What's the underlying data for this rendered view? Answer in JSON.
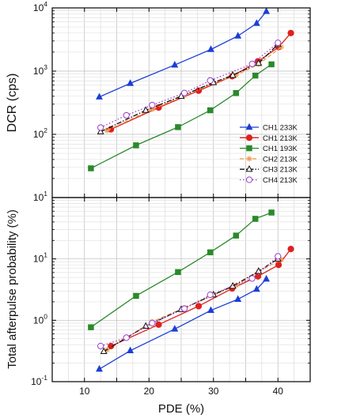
{
  "chart_data": [
    {
      "type": "line",
      "ylabel": "DCR (cps)",
      "yscale": "log",
      "ylim": [
        10,
        10000
      ],
      "xlim": [
        5,
        45
      ],
      "y_tick_labels": [
        {
          "value": 10,
          "base": "10",
          "exp": "1"
        },
        {
          "value": 100,
          "base": "10",
          "exp": "2"
        },
        {
          "value": 1000,
          "base": "10",
          "exp": "3"
        },
        {
          "value": 10000,
          "base": "10",
          "exp": "4"
        }
      ],
      "grid": true,
      "legend_position": "lower-right",
      "series": [
        {
          "name": "CH1 233K",
          "color": "#1a3fd6",
          "marker": "triangle-filled",
          "line": "solid",
          "points": [
            [
              12.3,
              390
            ],
            [
              17.1,
              640
            ],
            [
              24.0,
              1250
            ],
            [
              29.6,
              2200
            ],
            [
              33.8,
              3600
            ],
            [
              36.7,
              5700
            ],
            [
              38.2,
              8800
            ]
          ]
        },
        {
          "name": "CH1 213K",
          "color": "#e02020",
          "marker": "circle-filled",
          "line": "solid",
          "points": [
            [
              14.1,
              120
            ],
            [
              21.5,
              265
            ],
            [
              27.7,
              490
            ],
            [
              32.9,
              830
            ],
            [
              36.9,
              1430
            ],
            [
              40.1,
              2400
            ],
            [
              42.0,
              4000
            ]
          ]
        },
        {
          "name": "CH1 193K",
          "color": "#2a8a2a",
          "marker": "square-filled",
          "line": "solid",
          "points": [
            [
              11.0,
              29
            ],
            [
              18.0,
              67
            ],
            [
              24.5,
              130
            ],
            [
              29.5,
              240
            ],
            [
              33.5,
              450
            ],
            [
              36.5,
              850
            ],
            [
              39.0,
              1280
            ]
          ]
        },
        {
          "name": "CH2 213K",
          "color": "#f0a050",
          "marker": "star",
          "line": "dashed",
          "points": [
            [
              13.5,
              115
            ],
            [
              20.5,
              250
            ],
            [
              25.5,
              410
            ],
            [
              30.0,
              650
            ],
            [
              33.5,
              860
            ],
            [
              37.0,
              1280
            ],
            [
              40.5,
              2400
            ]
          ]
        },
        {
          "name": "CH3 213K",
          "color": "#111111",
          "marker": "triangle-open",
          "line": "dashdot",
          "points": [
            [
              12.5,
              110
            ],
            [
              19.5,
              240
            ],
            [
              25.0,
              400
            ],
            [
              30.0,
              660
            ],
            [
              33.0,
              860
            ],
            [
              37.0,
              1330
            ],
            [
              40.0,
              2650
            ]
          ]
        },
        {
          "name": "CH4 213K",
          "color": "#9a3fcf",
          "marker": "circle-open",
          "line": "dotted",
          "points": [
            [
              12.5,
              128
            ],
            [
              16.5,
              200
            ],
            [
              20.5,
              290
            ],
            [
              25.5,
              450
            ],
            [
              29.5,
              710
            ],
            [
              36.0,
              1300
            ],
            [
              40.0,
              2800
            ]
          ]
        }
      ]
    },
    {
      "type": "line",
      "xlabel": "PDE (%)",
      "ylabel": "Total afterpulse probability (%)",
      "yscale": "log",
      "ylim": [
        0.1,
        100
      ],
      "xlim": [
        5,
        45
      ],
      "x_tick_labels": [
        {
          "value": 10,
          "text": "10"
        },
        {
          "value": 20,
          "text": "20"
        },
        {
          "value": 30,
          "text": "30"
        },
        {
          "value": 40,
          "text": "40"
        }
      ],
      "y_tick_labels": [
        {
          "value": 0.1,
          "base": "10",
          "exp": "-1"
        },
        {
          "value": 1,
          "base": "10",
          "exp": "0"
        },
        {
          "value": 10,
          "base": "10",
          "exp": "1"
        }
      ],
      "grid": true,
      "series": [
        {
          "name": "CH1 233K",
          "color": "#1a3fd6",
          "marker": "triangle-filled",
          "line": "solid",
          "points": [
            [
              12.3,
              0.16
            ],
            [
              17.1,
              0.32
            ],
            [
              24.0,
              0.72
            ],
            [
              29.6,
              1.45
            ],
            [
              33.8,
              2.2
            ],
            [
              36.7,
              3.2
            ],
            [
              38.2,
              4.7
            ]
          ]
        },
        {
          "name": "CH1 213K",
          "color": "#e02020",
          "marker": "circle-filled",
          "line": "solid",
          "points": [
            [
              14.1,
              0.38
            ],
            [
              21.5,
              0.85
            ],
            [
              27.7,
              1.7
            ],
            [
              32.9,
              3.3
            ],
            [
              36.9,
              5.2
            ],
            [
              40.1,
              8.0
            ],
            [
              42.0,
              14.5
            ]
          ]
        },
        {
          "name": "CH1 193K",
          "color": "#2a8a2a",
          "marker": "square-filled",
          "line": "solid",
          "points": [
            [
              11.0,
              0.77
            ],
            [
              18.0,
              2.5
            ],
            [
              24.5,
              6.1
            ],
            [
              29.5,
              12.8
            ],
            [
              33.5,
              24.0
            ],
            [
              36.5,
              45.0
            ],
            [
              39.0,
              57.0
            ]
          ]
        },
        {
          "name": "CH2 213K",
          "color": "#f0a050",
          "marker": "star",
          "line": "dashed",
          "points": [
            [
              13.5,
              0.33
            ],
            [
              20.5,
              0.95
            ],
            [
              25.5,
              1.6
            ],
            [
              30.0,
              2.6
            ],
            [
              33.5,
              3.7
            ],
            [
              37.0,
              6.2
            ],
            [
              40.5,
              9.8
            ]
          ]
        },
        {
          "name": "CH3 213K",
          "color": "#111111",
          "marker": "triangle-open",
          "line": "dashdot",
          "points": [
            [
              13.0,
              0.31
            ],
            [
              19.5,
              0.8
            ],
            [
              25.0,
              1.5
            ],
            [
              30.0,
              2.6
            ],
            [
              33.0,
              3.6
            ],
            [
              37.0,
              6.3
            ],
            [
              40.0,
              10.0
            ]
          ]
        },
        {
          "name": "CH4 213K",
          "color": "#9a3fcf",
          "marker": "circle-open",
          "line": "dotted",
          "points": [
            [
              12.5,
              0.38
            ],
            [
              16.5,
              0.52
            ],
            [
              20.5,
              0.9
            ],
            [
              25.5,
              1.55
            ],
            [
              29.5,
              2.6
            ],
            [
              36.0,
              4.8
            ],
            [
              40.0,
              11.0
            ]
          ]
        }
      ]
    }
  ]
}
